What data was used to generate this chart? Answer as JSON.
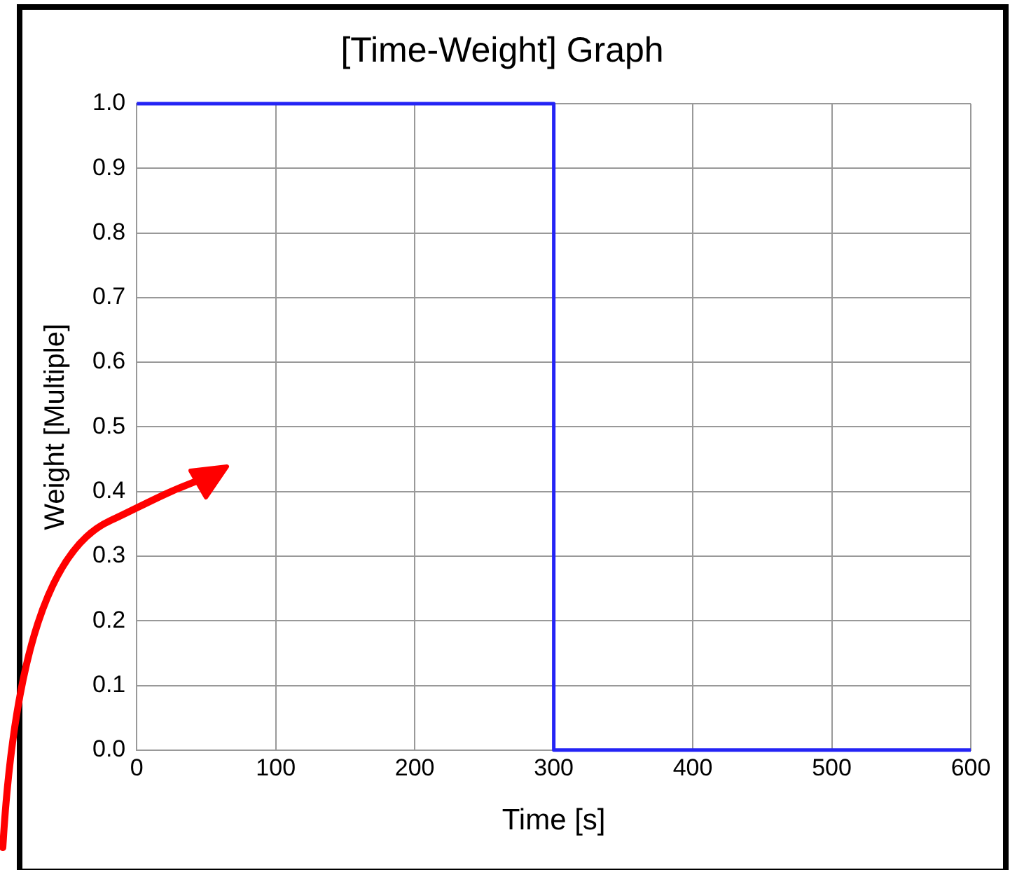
{
  "chart_data": {
    "type": "line",
    "title": "[Time-Weight] Graph",
    "xlabel": "Time [s]",
    "ylabel": "Weight [Multiple]",
    "x": [
      0,
      300,
      300,
      600
    ],
    "series": [
      {
        "color": "#2424f5",
        "values": [
          1,
          1,
          0,
          0
        ]
      }
    ],
    "xlim": [
      0,
      600
    ],
    "xticks": [
      0,
      100,
      200,
      300,
      400,
      500,
      600
    ],
    "ylim": [
      0,
      1
    ],
    "yticks": [
      {
        "value": 0,
        "label": "0.0"
      },
      {
        "value": 0.1,
        "label": "0.1"
      },
      {
        "value": 0.2,
        "label": "0.2"
      },
      {
        "value": 0.3,
        "label": "0.3"
      },
      {
        "value": 0.4,
        "label": "0.4"
      },
      {
        "value": 0.5,
        "label": "0.5"
      },
      {
        "value": 0.6,
        "label": "0.6"
      },
      {
        "value": 0.7,
        "label": "0.7"
      },
      {
        "value": 0.8,
        "label": "0.8"
      },
      {
        "value": 0.9,
        "label": "0.9"
      },
      {
        "value": 1,
        "label": "1.0"
      }
    ],
    "grid": true,
    "legend": false,
    "marker": "none",
    "line_style": "solid"
  }
}
